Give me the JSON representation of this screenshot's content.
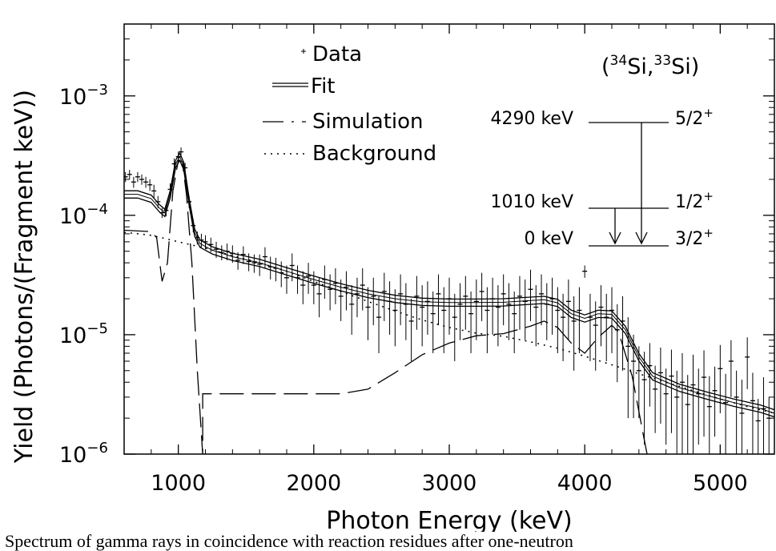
{
  "chart_data": {
    "type": "line",
    "xlabel": "Photon Energy (keV)",
    "ylabel": "Yield (Photons/(Fragment keV))",
    "xlim": [
      600,
      5400
    ],
    "ylim": [
      1e-06,
      0.004
    ],
    "yscale": "log",
    "x_ticks": [
      1000,
      2000,
      3000,
      4000,
      5000
    ],
    "y_ticks": [
      {
        "value": 0.001,
        "base": "10",
        "exp": "−3"
      },
      {
        "value": 0.0001,
        "base": "10",
        "exp": "−4"
      },
      {
        "value": 1e-05,
        "base": "10",
        "exp": "−5"
      },
      {
        "value": 1e-06,
        "base": "10",
        "exp": "−6"
      }
    ],
    "legend_position": "top-left",
    "legend": [
      "Data",
      "Fit",
      "Simulation",
      "Background"
    ],
    "series": [
      {
        "name": "Fit",
        "style": "double-solid",
        "points": [
          [
            600,
            0.00015
          ],
          [
            700,
            0.00015
          ],
          [
            800,
            0.000138
          ],
          [
            860,
            0.000115
          ],
          [
            900,
            0.000105
          ],
          [
            940,
            0.00015
          ],
          [
            980,
            0.00027
          ],
          [
            1010,
            0.00031
          ],
          [
            1040,
            0.00026
          ],
          [
            1080,
            0.00013
          ],
          [
            1120,
            7.2e-05
          ],
          [
            1160,
            5.8e-05
          ],
          [
            1250,
            5.1e-05
          ],
          [
            1400,
            4.5e-05
          ],
          [
            1600,
            4e-05
          ],
          [
            1800,
            3.4e-05
          ],
          [
            2000,
            2.9e-05
          ],
          [
            2200,
            2.5e-05
          ],
          [
            2400,
            2.2e-05
          ],
          [
            2600,
            2e-05
          ],
          [
            2800,
            1.89e-05
          ],
          [
            3000,
            1.86e-05
          ],
          [
            3200,
            1.86e-05
          ],
          [
            3400,
            1.87e-05
          ],
          [
            3600,
            1.93e-05
          ],
          [
            3700,
            1.96e-05
          ],
          [
            3800,
            1.85e-05
          ],
          [
            3900,
            1.5e-05
          ],
          [
            4000,
            1.37e-05
          ],
          [
            4100,
            1.5e-05
          ],
          [
            4200,
            1.48e-05
          ],
          [
            4300,
            1.1e-05
          ],
          [
            4400,
            6.5e-06
          ],
          [
            4500,
            4.5e-06
          ],
          [
            4700,
            3.6e-06
          ],
          [
            4900,
            3.1e-06
          ],
          [
            5100,
            2.7e-06
          ],
          [
            5300,
            2.4e-06
          ],
          [
            5400,
            2.2e-06
          ]
        ]
      },
      {
        "name": "Simulation",
        "style": "dashed",
        "points": [
          [
            600,
            7.5e-05
          ],
          [
            800,
            7.3e-05
          ],
          [
            840,
            6.5e-05
          ],
          [
            880,
            2.8e-05
          ],
          [
            920,
            4e-05
          ],
          [
            960,
            0.00016
          ],
          [
            1000,
            0.00029
          ],
          [
            1030,
            0.00028
          ],
          [
            1060,
            0.00015
          ],
          [
            1100,
            4e-05
          ],
          [
            1140,
            5e-06
          ],
          [
            1180,
            1e-06
          ],
          [
            1180,
            3.2e-06
          ],
          [
            1400,
            3.2e-06
          ],
          [
            1800,
            3.2e-06
          ],
          [
            2200,
            3.2e-06
          ],
          [
            2400,
            3.5e-06
          ],
          [
            2600,
            4.8e-06
          ],
          [
            2800,
            6.8e-06
          ],
          [
            3000,
            8.5e-06
          ],
          [
            3200,
            9.8e-06
          ],
          [
            3400,
            1.02e-05
          ],
          [
            3600,
            1.18e-05
          ],
          [
            3700,
            1.3e-05
          ],
          [
            3800,
            1.15e-05
          ],
          [
            3900,
            8.5e-06
          ],
          [
            4000,
            7e-06
          ],
          [
            4100,
            9.5e-06
          ],
          [
            4200,
            1.2e-05
          ],
          [
            4250,
            1.05e-05
          ],
          [
            4350,
            4.5e-06
          ],
          [
            4430,
            1.5e-06
          ],
          [
            4460,
            1e-06
          ]
        ]
      },
      {
        "name": "Background",
        "style": "dotted",
        "points": [
          [
            600,
            7.2e-05
          ],
          [
            700,
            7e-05
          ],
          [
            800,
            6.8e-05
          ],
          [
            900,
            6.4e-05
          ],
          [
            1000,
            6e-05
          ],
          [
            1200,
            5.3e-05
          ],
          [
            1400,
            4.6e-05
          ],
          [
            1600,
            4e-05
          ],
          [
            1800,
            3.4e-05
          ],
          [
            2000,
            2.8e-05
          ],
          [
            2200,
            2.3e-05
          ],
          [
            2400,
            1.9e-05
          ],
          [
            2600,
            1.58e-05
          ],
          [
            2800,
            1.33e-05
          ],
          [
            3000,
            1.15e-05
          ],
          [
            3200,
            1.03e-05
          ],
          [
            3400,
            9.7e-06
          ],
          [
            3600,
            8.7e-06
          ],
          [
            3800,
            7.7e-06
          ],
          [
            4000,
            6.6e-06
          ],
          [
            4200,
            5.6e-06
          ],
          [
            4400,
            4.7e-06
          ],
          [
            4600,
            4e-06
          ],
          [
            4800,
            3.4e-06
          ],
          [
            5000,
            2.9e-06
          ],
          [
            5200,
            2.5e-06
          ],
          [
            5400,
            2.2e-06
          ]
        ]
      },
      {
        "name": "Data",
        "style": "points-with-error-bars",
        "points": [
          [
            610,
            0.00021,
            2e-05
          ],
          [
            640,
            0.00022,
            2e-05
          ],
          [
            670,
            0.00019,
            2e-05
          ],
          [
            700,
            0.00021,
            2e-05
          ],
          [
            730,
            0.0002,
            2e-05
          ],
          [
            760,
            0.00019,
            2e-05
          ],
          [
            790,
            0.00018,
            2e-05
          ],
          [
            820,
            0.00016,
            2e-05
          ],
          [
            850,
            0.00013,
            1.5e-05
          ],
          [
            880,
            0.000105,
            1e-05
          ],
          [
            910,
            0.00011,
            1.2e-05
          ],
          [
            940,
            0.000165,
            2e-05
          ],
          [
            970,
            0.00027,
            3e-05
          ],
          [
            1000,
            0.00031,
            3e-05
          ],
          [
            1020,
            0.00034,
            3e-05
          ],
          [
            1050,
            0.00025,
            2.5e-05
          ],
          [
            1080,
            0.00013,
            1.5e-05
          ],
          [
            1110,
            8.2e-05,
            1e-05
          ],
          [
            1140,
            6.5e-05,
            8e-06
          ],
          [
            1170,
            6.2e-05,
            8e-06
          ],
          [
            1200,
            6e-05,
            8e-06
          ],
          [
            1240,
            5.7e-05,
            8e-06
          ],
          [
            1280,
            5.2e-05,
            8e-06
          ],
          [
            1320,
            4.9e-05,
            7e-06
          ],
          [
            1360,
            5e-05,
            8e-06
          ],
          [
            1400,
            4.8e-05,
            8e-06
          ],
          [
            1440,
            4.2e-05,
            7e-06
          ],
          [
            1480,
            4.7e-05,
            8e-06
          ],
          [
            1520,
            4.1e-05,
            7e-06
          ],
          [
            1560,
            4e-05,
            7e-06
          ],
          [
            1600,
            3.9e-05,
            8e-06
          ],
          [
            1640,
            4.5e-05,
            9e-06
          ],
          [
            1680,
            3.7e-05,
            8e-06
          ],
          [
            1720,
            3.6e-05,
            8e-06
          ],
          [
            1760,
            3.3e-05,
            8e-06
          ],
          [
            1800,
            3e-05,
            8e-06
          ],
          [
            1840,
            3.8e-05,
            1e-05
          ],
          [
            1880,
            3e-05,
            8e-06
          ],
          [
            1920,
            2.6e-05,
            8e-06
          ],
          [
            1960,
            3.1e-05,
            9e-06
          ],
          [
            2000,
            2.6e-05,
            8e-06
          ],
          [
            2040,
            2.2e-05,
            8e-06
          ],
          [
            2080,
            2.9e-05,
            9e-06
          ],
          [
            2120,
            2.4e-05,
            8e-06
          ],
          [
            2160,
            2.7e-05,
            9e-06
          ],
          [
            2200,
            2.1e-05,
            8e-06
          ],
          [
            2240,
            2.5e-05,
            9e-06
          ],
          [
            2280,
            1.8e-05,
            8e-06
          ],
          [
            2320,
            2.2e-05,
            8e-06
          ],
          [
            2360,
            2.6e-05,
            1e-05
          ],
          [
            2400,
            1.7e-05,
            8e-06
          ],
          [
            2440,
            2.1e-05,
            9e-06
          ],
          [
            2480,
            1.4e-05,
            7e-06
          ],
          [
            2520,
            2.3e-05,
            1e-05
          ],
          [
            2560,
            1.9e-05,
            9e-06
          ],
          [
            2600,
            1.6e-05,
            8e-06
          ],
          [
            2640,
            2.2e-05,
            1e-05
          ],
          [
            2680,
            1.8e-05,
            9e-06
          ],
          [
            2720,
            1.3e-05,
            7e-06
          ],
          [
            2760,
            2.1e-05,
            1e-05
          ],
          [
            2800,
            1.7e-05,
            9e-06
          ],
          [
            2840,
            1.9e-05,
            9e-06
          ],
          [
            2880,
            1.5e-05,
            8e-06
          ],
          [
            2920,
            2.2e-05,
            1e-05
          ],
          [
            2960,
            1.6e-05,
            9e-06
          ],
          [
            3000,
            2e-05,
            1e-05
          ],
          [
            3040,
            1.4e-05,
            8e-06
          ],
          [
            3080,
            1.8e-05,
            9e-06
          ],
          [
            3120,
            2.1e-05,
            1e-05
          ],
          [
            3160,
            1.5e-05,
            8e-06
          ],
          [
            3200,
            1.9e-05,
            1e-05
          ],
          [
            3240,
            2.3e-05,
            1e-05
          ],
          [
            3280,
            1.6e-05,
            9e-06
          ],
          [
            3320,
            2e-05,
            1e-05
          ],
          [
            3360,
            1.7e-05,
            9e-06
          ],
          [
            3400,
            2.2e-05,
            1e-05
          ],
          [
            3440,
            1.8e-05,
            9e-06
          ],
          [
            3480,
            1.5e-05,
            8e-06
          ],
          [
            3520,
            2.1e-05,
            1e-05
          ],
          [
            3560,
            1.9e-05,
            1e-05
          ],
          [
            3600,
            2.4e-05,
            1.1e-05
          ],
          [
            3640,
            1.7e-05,
            9e-06
          ],
          [
            3680,
            2.2e-05,
            1e-05
          ],
          [
            3720,
            1.8e-05,
            9e-06
          ],
          [
            3760,
            2e-05,
            1e-05
          ],
          [
            3800,
            1.6e-05,
            9e-06
          ],
          [
            3840,
            1.4e-05,
            8e-06
          ],
          [
            3880,
            1.9e-05,
            1e-05
          ],
          [
            3920,
            1.3e-05,
            8e-06
          ],
          [
            3960,
            1.6e-05,
            9e-06
          ],
          [
            4000,
            3.4e-05,
            4e-06
          ],
          [
            4040,
            1.4e-05,
            8e-06
          ],
          [
            4080,
            1.2e-05,
            7e-06
          ],
          [
            4120,
            1.7e-05,
            9e-06
          ],
          [
            4160,
            1.4e-05,
            8e-06
          ],
          [
            4200,
            1.6e-05,
            9e-06
          ],
          [
            4240,
            1.1e-05,
            7e-06
          ],
          [
            4280,
            1.3e-05,
            8e-06
          ],
          [
            4320,
            8e-06,
            6e-06
          ],
          [
            4360,
            6e-06,
            4e-06
          ],
          [
            4400,
            5e-06,
            3e-06
          ],
          [
            4440,
            4.2e-06,
            3e-06
          ],
          [
            4480,
            5.5e-06,
            3e-06
          ],
          [
            4520,
            3.5e-06,
            2e-06
          ],
          [
            4560,
            4.8e-06,
            3e-06
          ],
          [
            4600,
            3.2e-06,
            2e-06
          ],
          [
            4640,
            4.5e-06,
            3e-06
          ],
          [
            4680,
            3e-06,
            2e-06
          ],
          [
            4720,
            4e-06,
            3e-06
          ],
          [
            4760,
            2.6e-06,
            2e-06
          ],
          [
            4800,
            3.8e-06,
            3e-06
          ],
          [
            4840,
            3.2e-06,
            2e-06
          ],
          [
            4880,
            4.4e-06,
            3e-06
          ],
          [
            4920,
            2.5e-06,
            2e-06
          ],
          [
            4960,
            3.4e-06,
            2e-06
          ],
          [
            5000,
            5.2e-06,
            3e-06
          ],
          [
            5040,
            2.7e-06,
            2e-06
          ],
          [
            5080,
            6e-06,
            3e-06
          ],
          [
            5120,
            3e-06,
            2e-06
          ],
          [
            5160,
            2.2e-06,
            2e-06
          ],
          [
            5200,
            6.5e-06,
            3e-06
          ],
          [
            5240,
            2.8e-06,
            2e-06
          ],
          [
            5280,
            1.9e-06,
            1e-06
          ],
          [
            5320,
            2.4e-06,
            2e-06
          ],
          [
            5360,
            2e-06,
            1e-06
          ]
        ]
      }
    ],
    "inset": {
      "reaction": {
        "a": "34",
        "b": "Si",
        "c": "33",
        "d": "Si"
      },
      "levels": [
        {
          "energy": "4290 keV",
          "spin": "5/2",
          "parity": "+",
          "value": 4290
        },
        {
          "energy": "1010 keV",
          "spin": "1/2",
          "parity": "+",
          "value": 1010
        },
        {
          "energy": "0 keV",
          "spin": "3/2",
          "parity": "+",
          "value": 0
        }
      ],
      "transitions": [
        [
          1,
          2
        ],
        [
          0,
          2
        ]
      ]
    }
  },
  "caption": "Spectrum of gamma rays in coincidence with reaction residues after one-neutron"
}
